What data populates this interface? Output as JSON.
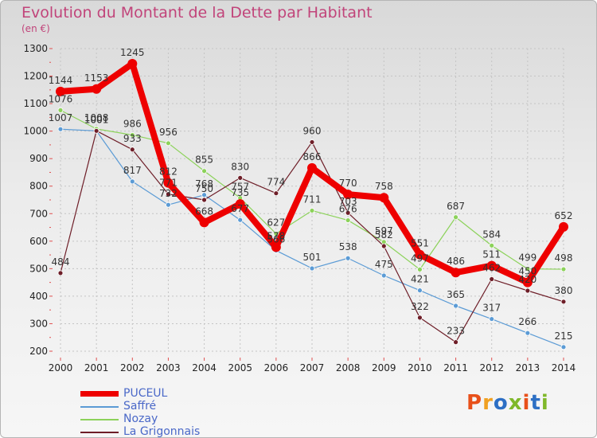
{
  "title": "Evolution du Montant de la Dette par Habitant",
  "unit": "(en €)",
  "logo": {
    "text": "Proxiti",
    "colors": [
      "#e8501a",
      "#f0a020",
      "#2d6fc4",
      "#7fb82a",
      "#e8501a",
      "#2d6fc4",
      "#7fb82a"
    ]
  },
  "chart_data": {
    "type": "line",
    "x": [
      "2000",
      "2001",
      "2002",
      "2003",
      "2004",
      "2005",
      "2006",
      "2007",
      "2008",
      "2009",
      "2010",
      "2011",
      "2012",
      "2013",
      "2014"
    ],
    "ylim": [
      200,
      1300
    ],
    "yticks": [
      200,
      300,
      400,
      500,
      600,
      700,
      800,
      900,
      1000,
      1100,
      1200,
      1300
    ],
    "grid": true,
    "legend_position": "bottom-left",
    "series": [
      {
        "name": "Saffré",
        "color": "#5b9bd5",
        "width": 1.2,
        "values": [
          1007,
          1001,
          817,
          732,
          768,
          677,
          566,
          501,
          538,
          475,
          421,
          365,
          317,
          266,
          215
        ]
      },
      {
        "name": "Nozay",
        "color": "#8cd25a",
        "width": 1.2,
        "values": [
          1076,
          1008,
          986,
          956,
          855,
          757,
          627,
          711,
          676,
          597,
          497,
          687,
          584,
          499,
          498
        ]
      },
      {
        "name": "La Grigonnais",
        "color": "#6e1e28",
        "width": 1.2,
        "values": [
          484,
          1001,
          933,
          771,
          750,
          830,
          774,
          960,
          703,
          582,
          322,
          233,
          462,
          420,
          380
        ]
      },
      {
        "name": "PUCEUL",
        "color": "#ee0000",
        "width": 8,
        "values": [
          1144,
          1153,
          1245,
          812,
          668,
          735,
          578,
          866,
          770,
          758,
          551,
          486,
          511,
          450,
          652
        ]
      }
    ],
    "legend_order": [
      "PUCEUL",
      "Saffré",
      "Nozay",
      "La Grigonnais"
    ]
  }
}
